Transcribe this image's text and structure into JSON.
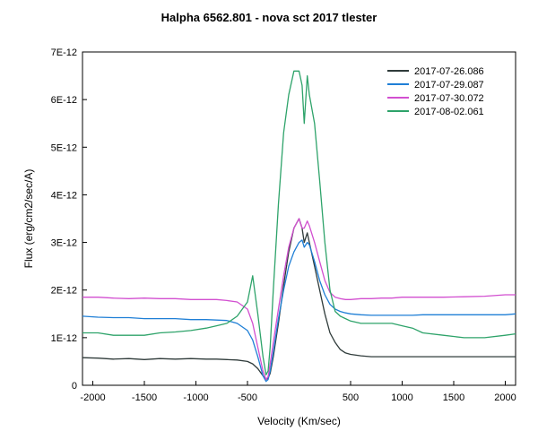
{
  "chart_data": {
    "type": "line",
    "title": "Halpha 6562.801 - nova sct 2017   tlester",
    "xlabel": "Velocity (Km/sec)",
    "ylabel": "Flux (erg/cm2/sec/A)",
    "xlim": [
      -2100,
      2100
    ],
    "ylim": [
      0,
      7e-12
    ],
    "xticks": [
      {
        "value": -2000,
        "label": "-2000"
      },
      {
        "value": -1500,
        "label": "-1500"
      },
      {
        "value": -1000,
        "label": "-1000"
      },
      {
        "value": -500,
        "label": "-500"
      },
      {
        "value": 500,
        "label": "500"
      },
      {
        "value": 1000,
        "label": "1000"
      },
      {
        "value": 1500,
        "label": "1500"
      },
      {
        "value": 2000,
        "label": "2000"
      }
    ],
    "yticks": [
      {
        "value": 0,
        "label": "0"
      },
      {
        "value": 1e-12,
        "label": "1E-12"
      },
      {
        "value": 2e-12,
        "label": "2E-12"
      },
      {
        "value": 3e-12,
        "label": "3E-12"
      },
      {
        "value": 4e-12,
        "label": "4E-12"
      },
      {
        "value": 5e-12,
        "label": "5E-12"
      },
      {
        "value": 6e-12,
        "label": "6E-12"
      },
      {
        "value": 7e-12,
        "label": "7E-12"
      }
    ],
    "grid": false,
    "legend_position": "top-right",
    "series": [
      {
        "name": "2017-07-26.086",
        "color": "#2f3b3a",
        "x": [
          -2100,
          -1950,
          -1800,
          -1650,
          -1500,
          -1350,
          -1200,
          -1050,
          -900,
          -800,
          -700,
          -600,
          -500,
          -450,
          -400,
          -350,
          -320,
          -300,
          -280,
          -250,
          -200,
          -150,
          -100,
          -50,
          0,
          30,
          50,
          80,
          100,
          150,
          200,
          250,
          300,
          350,
          400,
          450,
          500,
          600,
          700,
          800,
          900,
          1000,
          1100,
          1200,
          1400,
          1600,
          1800,
          2000,
          2100
        ],
        "y": [
          5.8e-13,
          5.7e-13,
          5.5e-13,
          5.6e-13,
          5.4e-13,
          5.6e-13,
          5.5e-13,
          5.6e-13,
          5.5e-13,
          5.5e-13,
          5.4e-13,
          5.3e-13,
          5e-13,
          4.5e-13,
          3.5e-13,
          2e-13,
          1.2e-13,
          1.5e-13,
          2.5e-13,
          6e-13,
          1.3e-12,
          2.1e-12,
          2.8e-12,
          3.3e-12,
          3.5e-12,
          3.3e-12,
          3e-12,
          3.2e-12,
          3e-12,
          2.5e-12,
          2e-12,
          1.5e-12,
          1.1e-12,
          9e-13,
          7.5e-13,
          6.8e-13,
          6.5e-13,
          6.2e-13,
          6e-13,
          6e-13,
          6e-13,
          6e-13,
          6e-13,
          6e-13,
          6e-13,
          6e-13,
          6e-13,
          6e-13,
          6e-13
        ]
      },
      {
        "name": "2017-07-29.087",
        "color": "#1f7fd6",
        "x": [
          -2100,
          -1950,
          -1800,
          -1650,
          -1500,
          -1350,
          -1200,
          -1050,
          -900,
          -800,
          -700,
          -600,
          -500,
          -450,
          -400,
          -350,
          -320,
          -300,
          -280,
          -250,
          -200,
          -150,
          -100,
          -50,
          0,
          30,
          50,
          80,
          100,
          150,
          200,
          250,
          300,
          350,
          400,
          450,
          500,
          600,
          700,
          800,
          900,
          1000,
          1100,
          1200,
          1400,
          1600,
          1800,
          2000,
          2100
        ],
        "y": [
          1.45e-12,
          1.43e-12,
          1.42e-12,
          1.42e-12,
          1.4e-12,
          1.4e-12,
          1.4e-12,
          1.38e-12,
          1.38e-12,
          1.37e-12,
          1.36e-12,
          1.3e-12,
          1.15e-12,
          9.5e-13,
          6e-13,
          2e-13,
          8e-14,
          1.2e-13,
          3e-13,
          7e-13,
          1.4e-12,
          2e-12,
          2.5e-12,
          2.8e-12,
          3e-12,
          3.05e-12,
          2.9e-12,
          3e-12,
          2.95e-12,
          2.6e-12,
          2.2e-12,
          1.9e-12,
          1.7e-12,
          1.6e-12,
          1.55e-12,
          1.52e-12,
          1.5e-12,
          1.48e-12,
          1.47e-12,
          1.47e-12,
          1.47e-12,
          1.47e-12,
          1.47e-12,
          1.48e-12,
          1.48e-12,
          1.48e-12,
          1.48e-12,
          1.48e-12,
          1.5e-12
        ]
      },
      {
        "name": "2017-07-30.072",
        "color": "#d24fd0",
        "x": [
          -2100,
          -1950,
          -1800,
          -1650,
          -1500,
          -1350,
          -1200,
          -1050,
          -900,
          -800,
          -700,
          -600,
          -500,
          -450,
          -400,
          -350,
          -320,
          -300,
          -280,
          -250,
          -200,
          -150,
          -100,
          -50,
          0,
          30,
          50,
          80,
          100,
          150,
          200,
          250,
          300,
          350,
          400,
          450,
          500,
          600,
          700,
          800,
          900,
          1000,
          1100,
          1200,
          1400,
          1600,
          1800,
          2000,
          2100
        ],
        "y": [
          1.85e-12,
          1.85e-12,
          1.83e-12,
          1.82e-12,
          1.83e-12,
          1.82e-12,
          1.82e-12,
          1.8e-12,
          1.8e-12,
          1.8e-12,
          1.78e-12,
          1.75e-12,
          1.6e-12,
          1.3e-12,
          8e-13,
          3e-13,
          1.2e-13,
          1.8e-13,
          4.5e-13,
          9e-13,
          1.6e-12,
          2.3e-12,
          2.9e-12,
          3.3e-12,
          3.5e-12,
          3.3e-12,
          3.3e-12,
          3.45e-12,
          3.35e-12,
          3e-12,
          2.6e-12,
          2.2e-12,
          1.95e-12,
          1.85e-12,
          1.82e-12,
          1.8e-12,
          1.8e-12,
          1.82e-12,
          1.82e-12,
          1.83e-12,
          1.83e-12,
          1.85e-12,
          1.85e-12,
          1.85e-12,
          1.85e-12,
          1.86e-12,
          1.87e-12,
          1.9e-12,
          1.9e-12
        ]
      },
      {
        "name": "2017-08-02.061",
        "color": "#2ea36a",
        "x": [
          -2100,
          -1950,
          -1800,
          -1650,
          -1500,
          -1350,
          -1200,
          -1050,
          -900,
          -800,
          -700,
          -600,
          -500,
          -450,
          -400,
          -350,
          -320,
          -300,
          -280,
          -250,
          -200,
          -150,
          -100,
          -50,
          0,
          30,
          50,
          80,
          100,
          150,
          200,
          250,
          300,
          350,
          400,
          450,
          500,
          600,
          700,
          800,
          900,
          1000,
          1100,
          1200,
          1400,
          1600,
          1800,
          2000,
          2100
        ],
        "y": [
          1.1e-12,
          1.1e-12,
          1.05e-12,
          1.05e-12,
          1.05e-12,
          1.1e-12,
          1.12e-12,
          1.15e-12,
          1.2e-12,
          1.25e-12,
          1.3e-12,
          1.45e-12,
          1.75e-12,
          2.3e-12,
          1.5e-12,
          6e-13,
          2.2e-13,
          3e-13,
          8e-13,
          2e-12,
          3.8e-12,
          5.3e-12,
          6.1e-12,
          6.6e-12,
          6.6e-12,
          6.3e-12,
          5.5e-12,
          6.5e-12,
          6.1e-12,
          5.5e-12,
          4.3e-12,
          3e-12,
          2e-12,
          1.55e-12,
          1.45e-12,
          1.4e-12,
          1.35e-12,
          1.3e-12,
          1.3e-12,
          1.3e-12,
          1.3e-12,
          1.25e-12,
          1.2e-12,
          1.1e-12,
          1.05e-12,
          1e-12,
          1e-12,
          1.05e-12,
          1.08e-12
        ]
      }
    ]
  }
}
